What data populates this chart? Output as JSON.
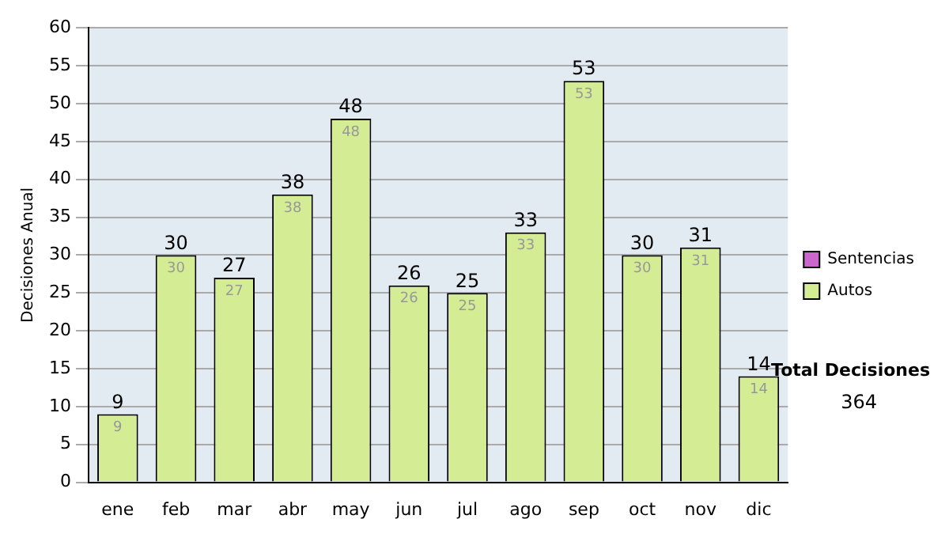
{
  "chart_data": {
    "type": "bar",
    "ylabel": "Decisiones Anual",
    "categories": [
      "ene",
      "feb",
      "mar",
      "abr",
      "may",
      "jun",
      "jul",
      "ago",
      "sep",
      "oct",
      "nov",
      "dic"
    ],
    "series": [
      {
        "name": "Sentencias",
        "color": "#cc66cc",
        "values": [
          null,
          null,
          null,
          null,
          null,
          null,
          null,
          null,
          null,
          null,
          null,
          null
        ]
      },
      {
        "name": "Autos",
        "color": "#d4ec94",
        "values": [
          9,
          30,
          27,
          38,
          48,
          26,
          25,
          33,
          53,
          30,
          31,
          14
        ]
      }
    ],
    "stacked": true,
    "totals": [
      "9",
      "30",
      "27",
      "38",
      "48",
      "26",
      "25",
      "33",
      "53",
      "30",
      "31",
      "14"
    ],
    "ylim": [
      0,
      60
    ],
    "yticks": [
      0,
      5,
      10,
      15,
      20,
      25,
      30,
      35,
      40,
      45,
      50,
      55,
      60
    ],
    "grid": "y",
    "legend": "right",
    "data_labels": true,
    "annotations": [
      "Total Decisiones",
      "364"
    ]
  }
}
